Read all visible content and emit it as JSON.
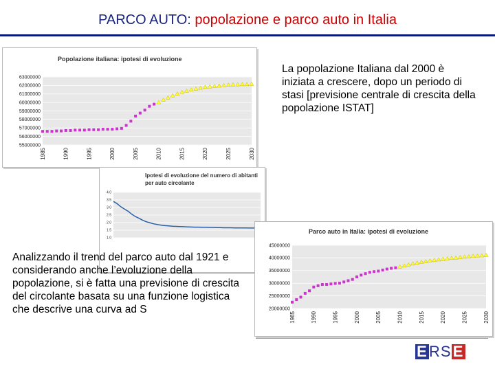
{
  "title": {
    "part1": "PARCO AUTO: ",
    "part2": "popolazione  e parco auto in Italia"
  },
  "right_text": "La popolazione Italiana dal 2000 è iniziata a crescere, dopo un periodo di stasi [previsione centrale di crescita della popolazione ISTAT]",
  "left_text": "Analizzando il trend del parco auto dal 1921 e considerando anche l’evoluzione della popolazione, si è fatta una previsione di crescita del circolante basata su una funzione logistica che descrive una curva ad  S",
  "logo": {
    "l1": "E",
    "l2": "RS",
    "l3": "E"
  },
  "colors": {
    "title_blue": "#1a237e",
    "title_red": "#cc0000",
    "history": "#cc33cc",
    "forecast": "#ffff33",
    "ratio_line": "#2a5fa8",
    "plot_bg": "#e8e8e8"
  },
  "chart_data": [
    {
      "type": "line",
      "title": "Popolazione italiana: ipotesi di evoluzione",
      "x_tick_labels": [
        "1985",
        "1990",
        "1995",
        "2000",
        "2005",
        "2010",
        "2015",
        "2020",
        "2025",
        "2030"
      ],
      "y_tick_labels": [
        "63000000",
        "62000000",
        "61000000",
        "60000000",
        "59000000",
        "58000000",
        "57000000",
        "56000000",
        "55000000"
      ],
      "ylim": [
        55000000,
        63000000
      ],
      "xlim": [
        1985,
        2030
      ],
      "series": [
        {
          "marker": "square",
          "color": "#cc33cc",
          "x": [
            1985,
            1986,
            1987,
            1988,
            1989,
            1990,
            1991,
            1992,
            1993,
            1994,
            1995,
            1996,
            1997,
            1998,
            1999,
            2000,
            2001,
            2002,
            2003,
            2004,
            2005,
            2006,
            2007,
            2008,
            2009
          ],
          "y": [
            56600000,
            56600000,
            56600000,
            56650000,
            56650000,
            56700000,
            56700000,
            56750000,
            56750000,
            56750000,
            56800000,
            56800000,
            56800000,
            56850000,
            56850000,
            56850000,
            56900000,
            56950000,
            57300000,
            57800000,
            58400000,
            58750000,
            59100000,
            59550000,
            59800000
          ]
        },
        {
          "marker": "triangle",
          "color": "#ffff33",
          "x": [
            2010,
            2011,
            2012,
            2013,
            2014,
            2015,
            2016,
            2017,
            2018,
            2019,
            2020,
            2021,
            2022,
            2023,
            2024,
            2025,
            2026,
            2027,
            2028,
            2029,
            2030
          ],
          "y": [
            60000000,
            60300000,
            60550000,
            60800000,
            61000000,
            61200000,
            61350000,
            61500000,
            61600000,
            61700000,
            61800000,
            61850000,
            61900000,
            61950000,
            62000000,
            62050000,
            62080000,
            62100000,
            62120000,
            62130000,
            62150000
          ]
        }
      ]
    },
    {
      "type": "line",
      "title": "Ipotesi di evoluzione del numero di abitanti per auto circolante",
      "y_tick_labels": [
        "4.0",
        "3.5",
        "3.0",
        "2.5",
        "2.0",
        "1.5",
        "1.0"
      ],
      "ylim": [
        1.0,
        4.0
      ],
      "series": [
        {
          "color": "#2a5fa8",
          "x": [
            0,
            1,
            2,
            3,
            4,
            5,
            6,
            7,
            8,
            9,
            10,
            11,
            12,
            13,
            14,
            15,
            16,
            17,
            18,
            19,
            20,
            21,
            22,
            23,
            24,
            25,
            26,
            27,
            28,
            29,
            30,
            31,
            32,
            33,
            34,
            35,
            36,
            37,
            38,
            39,
            40
          ],
          "y": [
            3.4,
            3.25,
            3.05,
            2.9,
            2.75,
            2.55,
            2.4,
            2.28,
            2.15,
            2.05,
            1.98,
            1.92,
            1.87,
            1.83,
            1.8,
            1.78,
            1.76,
            1.75,
            1.74,
            1.73,
            1.72,
            1.71,
            1.7,
            1.7,
            1.69,
            1.69,
            1.68,
            1.68,
            1.67,
            1.67,
            1.66,
            1.66,
            1.66,
            1.65,
            1.65,
            1.65,
            1.65,
            1.64,
            1.64,
            1.64,
            1.64
          ]
        }
      ]
    },
    {
      "type": "line",
      "title": "Parco auto in Italia: ipotesi di evoluzione",
      "x_tick_labels": [
        "1985",
        "1990",
        "1995",
        "2000",
        "2005",
        "2010",
        "2015",
        "2020",
        "2025",
        "2030"
      ],
      "y_tick_labels": [
        "45000000",
        "40000000",
        "35000000",
        "30000000",
        "25000000",
        "20000000"
      ],
      "ylim": [
        20000000,
        45000000
      ],
      "xlim": [
        1985,
        2030
      ],
      "series": [
        {
          "marker": "square",
          "color": "#cc33cc",
          "x": [
            1985,
            1986,
            1987,
            1988,
            1989,
            1990,
            1991,
            1992,
            1993,
            1994,
            1995,
            1996,
            1997,
            1998,
            1999,
            2000,
            2001,
            2002,
            2003,
            2004,
            2005,
            2006,
            2007,
            2008,
            2009
          ],
          "y": [
            22500000,
            23500000,
            24500000,
            26000000,
            27000000,
            28500000,
            29000000,
            29500000,
            29500000,
            29700000,
            29900000,
            30000000,
            30500000,
            31000000,
            31500000,
            32500000,
            33200000,
            33800000,
            34300000,
            34600000,
            34800000,
            35200000,
            35600000,
            35900000,
            36100000
          ]
        },
        {
          "marker": "triangle",
          "color": "#ffff33",
          "x": [
            2010,
            2011,
            2012,
            2013,
            2014,
            2015,
            2016,
            2017,
            2018,
            2019,
            2020,
            2021,
            2022,
            2023,
            2024,
            2025,
            2026,
            2027,
            2028,
            2029,
            2030
          ],
          "y": [
            36500000,
            36900000,
            37300000,
            37700000,
            38000000,
            38300000,
            38600000,
            38900000,
            39100000,
            39300000,
            39500000,
            39700000,
            39900000,
            40000000,
            40200000,
            40400000,
            40500000,
            40700000,
            40800000,
            40900000,
            41100000
          ]
        }
      ]
    }
  ]
}
